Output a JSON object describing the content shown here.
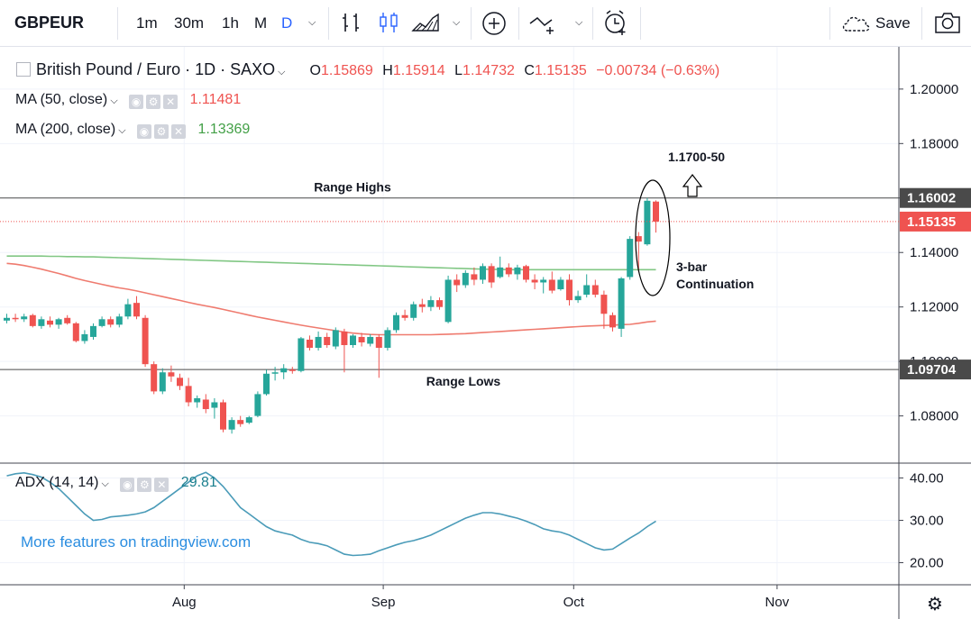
{
  "toolbar": {
    "symbol": "GBPEUR",
    "intervals": [
      "1m",
      "30m",
      "1h",
      "M",
      "D"
    ],
    "active_interval": "D",
    "save_label": "Save"
  },
  "legend": {
    "title": "British Pound / Euro · 1D · SAXO",
    "ohlc": {
      "o_label": "O",
      "o": "1.15869",
      "h_label": "H",
      "h": "1.15914",
      "l_label": "L",
      "l": "1.14732",
      "c_label": "C",
      "c": "1.15135",
      "change": "−0.00734 (−0.63%)"
    },
    "ma50_label": "MA (50, close)",
    "ma50_value": "1.11481",
    "ma200_label": "MA (200, close)",
    "ma200_value": "1.13369",
    "adx_label": "ADX (14, 14)",
    "adx_value": "29.81"
  },
  "watermark": "More features on tradingview.com",
  "colors": {
    "up": "#26a69a",
    "down": "#ef5350",
    "ma50": "#ef7b6f",
    "ma200": "#81c784",
    "adx": "#4a9bb8",
    "price_line": "#ef5350",
    "annotation": "#000000"
  },
  "chart_data": {
    "type": "candlestick",
    "title": "British Pound / Euro · 1D · SAXO",
    "x_ticks": [
      "Aug",
      "Sep",
      "Oct",
      "Nov"
    ],
    "y_ticks": [
      "1.08000",
      "1.10000",
      "1.12000",
      "1.14000",
      "1.16000",
      "1.18000",
      "1.20000"
    ],
    "ylim": [
      1.063,
      1.2155
    ],
    "adx_ticks": [
      "20.00",
      "30.00",
      "40.00"
    ],
    "adx_ylim": [
      15,
      43.5
    ],
    "horizontal_levels": [
      {
        "name": "Range Highs",
        "value": 1.16002,
        "label": "1.16002"
      },
      {
        "name": "Range Lows",
        "value": 1.09704,
        "label": "1.09704"
      }
    ],
    "last_price": {
      "value": 1.15135,
      "label": "1.15135"
    },
    "annotations": {
      "range_highs": "Range Highs",
      "range_lows": "Range Lows",
      "target": "1.1700-50",
      "pattern_line1": "3-bar",
      "pattern_line2": "Continuation"
    },
    "candles": [
      {
        "o": 1.115,
        "h": 1.1175,
        "l": 1.114,
        "c": 1.116
      },
      {
        "o": 1.116,
        "h": 1.1175,
        "l": 1.1145,
        "c": 1.1155
      },
      {
        "o": 1.1155,
        "h": 1.1175,
        "l": 1.1145,
        "c": 1.1165
      },
      {
        "o": 1.117,
        "h": 1.1175,
        "l": 1.1125,
        "c": 1.113
      },
      {
        "o": 1.113,
        "h": 1.1165,
        "l": 1.112,
        "c": 1.1155
      },
      {
        "o": 1.115,
        "h": 1.1165,
        "l": 1.1125,
        "c": 1.1135
      },
      {
        "o": 1.1135,
        "h": 1.116,
        "l": 1.112,
        "c": 1.1155
      },
      {
        "o": 1.116,
        "h": 1.117,
        "l": 1.1135,
        "c": 1.114
      },
      {
        "o": 1.114,
        "h": 1.1145,
        "l": 1.107,
        "c": 1.1075
      },
      {
        "o": 1.1075,
        "h": 1.1115,
        "l": 1.1065,
        "c": 1.11
      },
      {
        "o": 1.109,
        "h": 1.114,
        "l": 1.108,
        "c": 1.113
      },
      {
        "o": 1.113,
        "h": 1.1165,
        "l": 1.1125,
        "c": 1.1155
      },
      {
        "o": 1.1155,
        "h": 1.1165,
        "l": 1.1125,
        "c": 1.1135
      },
      {
        "o": 1.1135,
        "h": 1.1175,
        "l": 1.1125,
        "c": 1.1165
      },
      {
        "o": 1.1165,
        "h": 1.123,
        "l": 1.1155,
        "c": 1.121
      },
      {
        "o": 1.1215,
        "h": 1.124,
        "l": 1.1155,
        "c": 1.1165
      },
      {
        "o": 1.116,
        "h": 1.117,
        "l": 1.098,
        "c": 1.099
      },
      {
        "o": 1.099,
        "h": 1.1,
        "l": 1.088,
        "c": 1.089
      },
      {
        "o": 1.089,
        "h": 1.0975,
        "l": 1.088,
        "c": 1.096
      },
      {
        "o": 1.096,
        "h": 1.0985,
        "l": 1.0925,
        "c": 1.0945
      },
      {
        "o": 1.094,
        "h": 1.0955,
        "l": 1.0895,
        "c": 1.091
      },
      {
        "o": 1.091,
        "h": 1.094,
        "l": 1.0835,
        "c": 1.085
      },
      {
        "o": 1.085,
        "h": 1.0875,
        "l": 1.083,
        "c": 1.0865
      },
      {
        "o": 1.086,
        "h": 1.088,
        "l": 1.081,
        "c": 1.0825
      },
      {
        "o": 1.083,
        "h": 1.0865,
        "l": 1.079,
        "c": 1.085
      },
      {
        "o": 1.085,
        "h": 1.086,
        "l": 1.074,
        "c": 1.075
      },
      {
        "o": 1.075,
        "h": 1.0795,
        "l": 1.0735,
        "c": 1.0785
      },
      {
        "o": 1.0785,
        "h": 1.08,
        "l": 1.076,
        "c": 1.077
      },
      {
        "o": 1.0775,
        "h": 1.08,
        "l": 1.077,
        "c": 1.0795
      },
      {
        "o": 1.08,
        "h": 1.089,
        "l": 1.0795,
        "c": 1.088
      },
      {
        "o": 1.088,
        "h": 1.097,
        "l": 1.0875,
        "c": 1.0955
      },
      {
        "o": 1.0955,
        "h": 1.098,
        "l": 1.093,
        "c": 1.096
      },
      {
        "o": 1.096,
        "h": 1.099,
        "l": 1.0935,
        "c": 1.0975
      },
      {
        "o": 1.097,
        "h": 1.098,
        "l": 1.0955,
        "c": 1.0965
      },
      {
        "o": 1.0965,
        "h": 1.109,
        "l": 1.096,
        "c": 1.1085
      },
      {
        "o": 1.108,
        "h": 1.1095,
        "l": 1.104,
        "c": 1.105
      },
      {
        "o": 1.105,
        "h": 1.111,
        "l": 1.104,
        "c": 1.109
      },
      {
        "o": 1.109,
        "h": 1.1105,
        "l": 1.105,
        "c": 1.106
      },
      {
        "o": 1.1055,
        "h": 1.1125,
        "l": 1.1045,
        "c": 1.1115
      },
      {
        "o": 1.111,
        "h": 1.112,
        "l": 1.096,
        "c": 1.106
      },
      {
        "o": 1.106,
        "h": 1.11,
        "l": 1.105,
        "c": 1.1095
      },
      {
        "o": 1.109,
        "h": 1.1105,
        "l": 1.1055,
        "c": 1.107
      },
      {
        "o": 1.1065,
        "h": 1.11,
        "l": 1.1055,
        "c": 1.109
      },
      {
        "o": 1.109,
        "h": 1.11,
        "l": 1.094,
        "c": 1.105
      },
      {
        "o": 1.105,
        "h": 1.1125,
        "l": 1.104,
        "c": 1.1115
      },
      {
        "o": 1.1115,
        "h": 1.118,
        "l": 1.1105,
        "c": 1.117
      },
      {
        "o": 1.117,
        "h": 1.119,
        "l": 1.115,
        "c": 1.116
      },
      {
        "o": 1.116,
        "h": 1.122,
        "l": 1.115,
        "c": 1.121
      },
      {
        "o": 1.121,
        "h": 1.123,
        "l": 1.118,
        "c": 1.12
      },
      {
        "o": 1.12,
        "h": 1.124,
        "l": 1.1185,
        "c": 1.1225
      },
      {
        "o": 1.1225,
        "h": 1.1235,
        "l": 1.119,
        "c": 1.12
      },
      {
        "o": 1.1145,
        "h": 1.1315,
        "l": 1.114,
        "c": 1.13
      },
      {
        "o": 1.13,
        "h": 1.132,
        "l": 1.1255,
        "c": 1.128
      },
      {
        "o": 1.128,
        "h": 1.1335,
        "l": 1.127,
        "c": 1.1325
      },
      {
        "o": 1.132,
        "h": 1.1345,
        "l": 1.128,
        "c": 1.13
      },
      {
        "o": 1.13,
        "h": 1.136,
        "l": 1.1285,
        "c": 1.135
      },
      {
        "o": 1.135,
        "h": 1.136,
        "l": 1.127,
        "c": 1.129
      },
      {
        "o": 1.131,
        "h": 1.1385,
        "l": 1.1305,
        "c": 1.1345
      },
      {
        "o": 1.1345,
        "h": 1.136,
        "l": 1.131,
        "c": 1.132
      },
      {
        "o": 1.132,
        "h": 1.1355,
        "l": 1.13,
        "c": 1.1345
      },
      {
        "o": 1.135,
        "h": 1.1355,
        "l": 1.129,
        "c": 1.13
      },
      {
        "o": 1.13,
        "h": 1.132,
        "l": 1.1265,
        "c": 1.129
      },
      {
        "o": 1.129,
        "h": 1.131,
        "l": 1.125,
        "c": 1.13
      },
      {
        "o": 1.13,
        "h": 1.133,
        "l": 1.125,
        "c": 1.126
      },
      {
        "o": 1.1265,
        "h": 1.131,
        "l": 1.126,
        "c": 1.13
      },
      {
        "o": 1.13,
        "h": 1.132,
        "l": 1.1205,
        "c": 1.1225
      },
      {
        "o": 1.1225,
        "h": 1.126,
        "l": 1.1215,
        "c": 1.124
      },
      {
        "o": 1.1245,
        "h": 1.132,
        "l": 1.1235,
        "c": 1.128
      },
      {
        "o": 1.128,
        "h": 1.13,
        "l": 1.1235,
        "c": 1.1245
      },
      {
        "o": 1.1245,
        "h": 1.126,
        "l": 1.112,
        "c": 1.1175
      },
      {
        "o": 1.117,
        "h": 1.118,
        "l": 1.111,
        "c": 1.1125
      },
      {
        "o": 1.112,
        "h": 1.131,
        "l": 1.109,
        "c": 1.1305
      },
      {
        "o": 1.131,
        "h": 1.146,
        "l": 1.13,
        "c": 1.145
      },
      {
        "o": 1.146,
        "h": 1.1475,
        "l": 1.133,
        "c": 1.144
      },
      {
        "o": 1.143,
        "h": 1.16,
        "l": 1.1425,
        "c": 1.159
      },
      {
        "o": 1.15869,
        "h": 1.15914,
        "l": 1.14732,
        "c": 1.15135
      }
    ],
    "ma50": [
      1.136,
      1.1357,
      1.1352,
      1.1346,
      1.1339,
      1.1331,
      1.1323,
      1.1314,
      1.1305,
      1.1297,
      1.129,
      1.1283,
      1.1276,
      1.127,
      1.1265,
      1.1259,
      1.1252,
      1.1245,
      1.1238,
      1.1231,
      1.1224,
      1.1217,
      1.121,
      1.1204,
      1.1198,
      1.1191,
      1.1184,
      1.1177,
      1.117,
      1.1163,
      1.1157,
      1.1151,
      1.1145,
      1.1139,
      1.1133,
      1.1128,
      1.1123,
      1.1118,
      1.1113,
      1.1108,
      1.1104,
      1.1101,
      1.1099,
      1.1098,
      1.1098,
      1.1098,
      1.1098,
      1.1098,
      1.1098,
      1.1098,
      1.1099,
      1.11,
      1.1101,
      1.1102,
      1.1104,
      1.1106,
      1.1108,
      1.111,
      1.1112,
      1.1114,
      1.1116,
      1.1118,
      1.112,
      1.1122,
      1.1124,
      1.1126,
      1.1128,
      1.113,
      1.1131,
      1.1132,
      1.1133,
      1.1135,
      1.1136,
      1.114,
      1.1145,
      1.1148
    ],
    "ma200": [
      1.1387,
      1.1387,
      1.1387,
      1.1387,
      1.1387,
      1.1386,
      1.1386,
      1.1385,
      1.1385,
      1.1384,
      1.1384,
      1.1383,
      1.1382,
      1.1381,
      1.138,
      1.1379,
      1.1378,
      1.1377,
      1.1376,
      1.1375,
      1.1374,
      1.1373,
      1.1372,
      1.1371,
      1.137,
      1.1369,
      1.1368,
      1.1367,
      1.1366,
      1.1365,
      1.1364,
      1.1363,
      1.1362,
      1.1361,
      1.136,
      1.1359,
      1.1358,
      1.1357,
      1.1356,
      1.1355,
      1.1354,
      1.1353,
      1.1352,
      1.1351,
      1.135,
      1.1349,
      1.1348,
      1.1347,
      1.1346,
      1.1345,
      1.1344,
      1.1343,
      1.1342,
      1.1341,
      1.134,
      1.1339,
      1.1338,
      1.1338,
      1.1337,
      1.1337,
      1.1337,
      1.1337,
      1.1337,
      1.1337,
      1.1337,
      1.1337,
      1.1337,
      1.1337,
      1.1337,
      1.1337,
      1.1337,
      1.1337,
      1.1337,
      1.1337,
      1.1337,
      1.1337
    ],
    "adx": [
      40.5,
      41.0,
      41.2,
      40.8,
      40.2,
      39.0,
      37.5,
      35.5,
      33.5,
      31.5,
      30.0,
      30.2,
      30.8,
      31.0,
      31.2,
      31.5,
      32.0,
      33.0,
      34.5,
      36.0,
      37.5,
      39.0,
      40.5,
      41.3,
      40.0,
      38.0,
      35.5,
      33.0,
      31.5,
      30.0,
      28.5,
      27.5,
      27.0,
      26.5,
      25.5,
      24.8,
      24.5,
      24.0,
      23.0,
      22.0,
      21.7,
      21.8,
      22.0,
      22.8,
      23.5,
      24.2,
      24.8,
      25.2,
      25.8,
      26.5,
      27.5,
      28.5,
      29.5,
      30.5,
      31.2,
      31.8,
      31.8,
      31.5,
      31.0,
      30.5,
      29.8,
      29.0,
      28.0,
      27.5,
      27.2,
      26.5,
      25.5,
      24.5,
      23.5,
      23.0,
      23.2,
      24.5,
      25.8,
      27.0,
      28.5,
      29.81
    ]
  }
}
